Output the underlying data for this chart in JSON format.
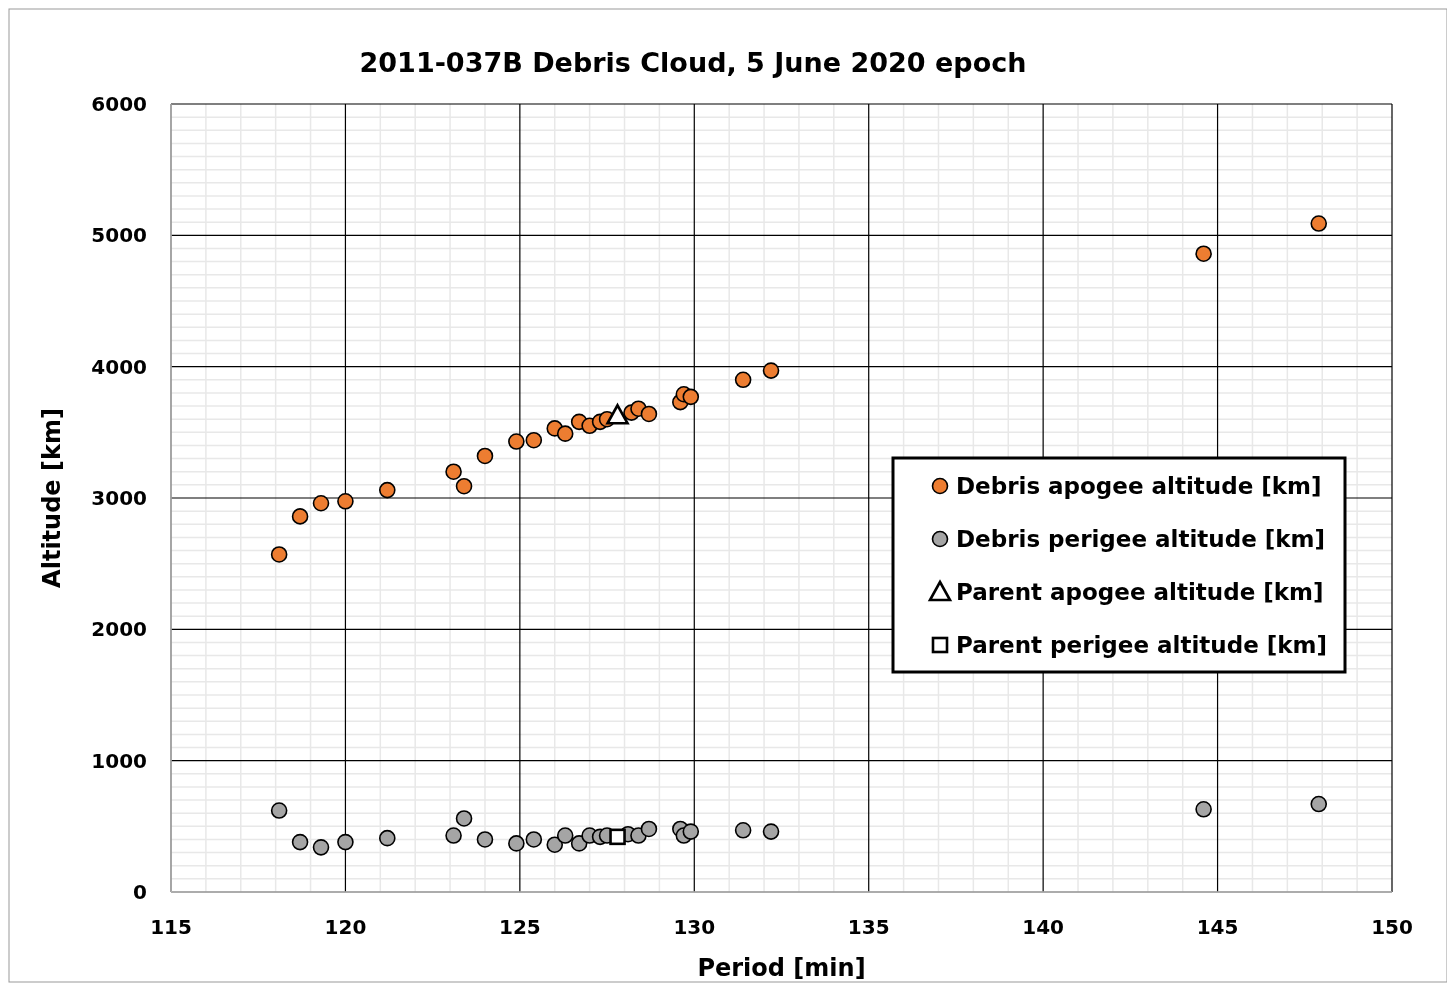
{
  "chart_data": {
    "type": "scatter",
    "title": "2011-037B Debris Cloud, 5 June 2020 epoch",
    "xlabel": "Period [min]",
    "ylabel": "Altitude [km]",
    "xlim": [
      115,
      150
    ],
    "xticks": [
      115,
      120,
      125,
      130,
      135,
      140,
      145,
      150
    ],
    "ylim": [
      0,
      6000
    ],
    "yticks": [
      0,
      1000,
      2000,
      3000,
      4000,
      5000,
      6000
    ],
    "grid": true,
    "legend": "right",
    "series": [
      {
        "name": "Debris apogee altitude [km]",
        "color": "#ed7d31",
        "marker": "circle",
        "x": [
          118.1,
          118.7,
          119.3,
          120.0,
          121.2,
          123.1,
          123.4,
          124.0,
          124.9,
          125.4,
          126.0,
          126.3,
          126.7,
          127.0,
          127.3,
          127.5,
          128.2,
          128.4,
          128.7,
          129.6,
          129.7,
          129.9,
          131.4,
          132.2,
          144.6,
          147.9
        ],
        "values": [
          2570,
          2860,
          2960,
          2975,
          3060,
          3200,
          3090,
          3320,
          3430,
          3440,
          3530,
          3490,
          3580,
          3550,
          3580,
          3600,
          3650,
          3680,
          3640,
          3730,
          3790,
          3770,
          3900,
          3970,
          4860,
          5090
        ]
      },
      {
        "name": "Debris perigee altitude [km]",
        "color": "#a5a5a5",
        "marker": "circle",
        "x": [
          118.1,
          118.7,
          119.3,
          120.0,
          121.2,
          123.1,
          123.4,
          124.0,
          124.9,
          125.4,
          126.0,
          126.3,
          126.7,
          127.0,
          127.3,
          127.5,
          128.1,
          128.4,
          128.7,
          129.6,
          129.7,
          129.9,
          131.4,
          132.2,
          144.6,
          147.9
        ],
        "values": [
          620,
          380,
          340,
          380,
          410,
          430,
          560,
          400,
          370,
          400,
          360,
          430,
          370,
          430,
          420,
          430,
          440,
          430,
          480,
          480,
          430,
          460,
          470,
          460,
          630,
          670
        ]
      },
      {
        "name": "Parent apogee altitude [km]",
        "color": "#ffffff",
        "marker": "triangle",
        "x": [
          127.8
        ],
        "values": [
          3630
        ]
      },
      {
        "name": "Parent perigee altitude [km]",
        "color": "#ffffff",
        "marker": "square",
        "x": [
          127.8
        ],
        "values": [
          420
        ]
      }
    ]
  }
}
